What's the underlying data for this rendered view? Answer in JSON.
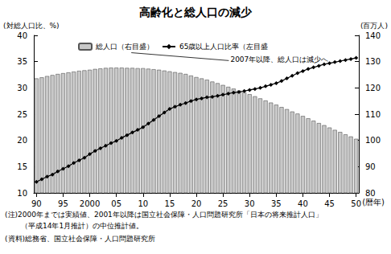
{
  "chart_data": {
    "type": "bar",
    "title": "高齢化と総人口の減少",
    "y_label": "(対総人口比、%)",
    "y2_label": "(百万人)",
    "x_label": "(暦年)",
    "annotation": "2007年以降、総人口は減少へ",
    "notes": [
      "(注)2000年までは実績値、2001年以降は国立社会保障・人口問題研究所「日本の将来推計人口」",
      "（平成14年1月推計）の中位推計値。",
      "(資料)総務省、国立社会保障・人口問題研究所"
    ],
    "categories": [
      "90",
      null,
      null,
      null,
      null,
      "95",
      null,
      null,
      null,
      null,
      "2000",
      null,
      null,
      null,
      null,
      "05",
      null,
      null,
      null,
      null,
      "10",
      null,
      null,
      null,
      null,
      "15",
      null,
      null,
      null,
      null,
      "20",
      null,
      null,
      null,
      null,
      "25",
      null,
      null,
      null,
      null,
      "30",
      null,
      null,
      null,
      null,
      "35",
      null,
      null,
      null,
      null,
      "40",
      null,
      null,
      null,
      null,
      "45",
      null,
      null,
      null,
      null,
      "50"
    ],
    "series": [
      {
        "name": "総人口（右目盛）",
        "type": "bar",
        "axis": "y2",
        "color": "#c8c8c8",
        "values": [
          123.6,
          124.0,
          124.5,
          124.9,
          125.3,
          125.6,
          125.9,
          126.2,
          126.5,
          126.7,
          126.9,
          127.2,
          127.4,
          127.6,
          127.7,
          127.7,
          127.7,
          127.6,
          127.6,
          127.5,
          127.5,
          127.3,
          127.1,
          126.9,
          126.6,
          126.3,
          126.0,
          125.7,
          125.3,
          124.7,
          124.1,
          123.6,
          123.1,
          122.4,
          121.8,
          121.1,
          120.4,
          119.7,
          119.0,
          118.3,
          117.6,
          116.8,
          116.0,
          115.2,
          114.4,
          113.6,
          112.7,
          111.9,
          111.0,
          110.2,
          109.3,
          108.4,
          107.5,
          106.6,
          105.8,
          104.9,
          104.0,
          103.2,
          102.3,
          101.5,
          100.6
        ]
      },
      {
        "name": "65歳以上人口比率（左目盛",
        "type": "line",
        "color": "#000000",
        "marker": "diamond",
        "values": [
          12.1,
          12.6,
          13.1,
          13.5,
          14.1,
          14.6,
          15.1,
          15.7,
          16.2,
          16.7,
          17.4,
          18.0,
          18.5,
          19.0,
          19.5,
          19.9,
          20.5,
          21.0,
          21.5,
          22.0,
          22.5,
          23.2,
          23.9,
          24.6,
          25.3,
          26.0,
          26.4,
          26.8,
          27.1,
          27.5,
          27.8,
          28.0,
          28.2,
          28.3,
          28.5,
          28.7,
          28.9,
          29.1,
          29.2,
          29.4,
          29.6,
          29.8,
          30.0,
          30.3,
          30.6,
          30.9,
          31.3,
          31.8,
          32.3,
          32.8,
          33.2,
          33.6,
          33.9,
          34.2,
          34.5,
          34.7,
          34.9,
          35.1,
          35.3,
          35.5,
          35.7
        ]
      }
    ],
    "ylim": [
      10,
      40
    ],
    "yticks": [
      10,
      15,
      20,
      25,
      30,
      35,
      40
    ],
    "y2lim": [
      80,
      140
    ],
    "y2ticks": [
      80,
      90,
      100,
      110,
      120,
      130,
      140
    ],
    "grid": false,
    "legend": "top-left"
  }
}
